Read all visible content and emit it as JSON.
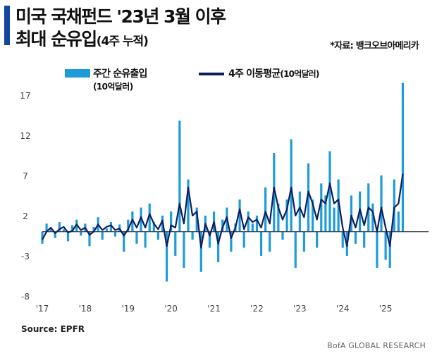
{
  "header": {
    "title_line1": "미국 국채펀드 '23년 3월 이후",
    "title_line2": "최대 순유입",
    "title_line2_sub": "(4주 누적)",
    "source_note": "*자료: 뱅크오브아메리카"
  },
  "legend": {
    "bar_label": "주간 순유출입",
    "bar_unit": "(10억달러)",
    "line_label": "4주 이동평균",
    "line_unit": "(10억달러)"
  },
  "footer": {
    "source": "Source: EPFR",
    "credit": "BofA GLOBAL RESEARCH"
  },
  "colors": {
    "bar": "#1e9bd8",
    "line": "#0d1f5c",
    "accent": "#1446a0"
  },
  "chart_data": {
    "type": "bar",
    "title": "미국 국채펀드 '23년 3월 이후 최대 순유입(4주 누적)",
    "xlabel": "",
    "ylabel": "10억달러",
    "ylim": [
      -8,
      19
    ],
    "yticks": [
      "17",
      "12",
      "7",
      "2",
      "-3",
      "-8"
    ],
    "ytick_values": [
      17,
      12,
      7,
      2,
      -3,
      -8
    ],
    "xticks": [
      "'17",
      "'18",
      "'19",
      "'20",
      "'21",
      "'22",
      "'23",
      "'24",
      "'25"
    ],
    "x_start_year": 2017,
    "x_end_year": 2026,
    "series": [
      {
        "name": "주간 순유출입",
        "type": "bar",
        "points": [
          [
            2017.0,
            -1.5
          ],
          [
            2017.1,
            1.0
          ],
          [
            2017.2,
            0.5
          ],
          [
            2017.3,
            -0.8
          ],
          [
            2017.4,
            1.2
          ],
          [
            2017.5,
            0.3
          ],
          [
            2017.6,
            -1.2
          ],
          [
            2017.7,
            0.8
          ],
          [
            2017.8,
            1.5
          ],
          [
            2017.9,
            -0.5
          ],
          [
            2018.0,
            1.0
          ],
          [
            2018.1,
            -1.8
          ],
          [
            2018.2,
            0.6
          ],
          [
            2018.3,
            1.8
          ],
          [
            2018.4,
            -1.0
          ],
          [
            2018.5,
            0.4
          ],
          [
            2018.6,
            1.2
          ],
          [
            2018.7,
            -0.6
          ],
          [
            2018.8,
            0.9
          ],
          [
            2018.9,
            -2.5
          ],
          [
            2019.0,
            1.5
          ],
          [
            2019.1,
            2.5
          ],
          [
            2019.2,
            -1.5
          ],
          [
            2019.3,
            3.0
          ],
          [
            2019.4,
            -2.0
          ],
          [
            2019.5,
            3.5
          ],
          [
            2019.6,
            1.2
          ],
          [
            2019.7,
            -1.0
          ],
          [
            2019.8,
            2.0
          ],
          [
            2019.9,
            -6.2
          ],
          [
            2020.0,
            2.5
          ],
          [
            2020.1,
            -3.0
          ],
          [
            2020.2,
            13.8
          ],
          [
            2020.3,
            -4.5
          ],
          [
            2020.4,
            6.5
          ],
          [
            2020.5,
            -1.0
          ],
          [
            2020.6,
            3.0
          ],
          [
            2020.7,
            -5.0
          ],
          [
            2020.8,
            2.0
          ],
          [
            2020.9,
            -2.0
          ],
          [
            2021.0,
            2.5
          ],
          [
            2021.1,
            -3.8
          ],
          [
            2021.2,
            1.5
          ],
          [
            2021.3,
            3.0
          ],
          [
            2021.4,
            -2.5
          ],
          [
            2021.5,
            1.0
          ],
          [
            2021.6,
            4.0
          ],
          [
            2021.7,
            -2.0
          ],
          [
            2021.8,
            2.5
          ],
          [
            2021.9,
            1.0
          ],
          [
            2022.0,
            2.0
          ],
          [
            2022.1,
            -3.0
          ],
          [
            2022.2,
            5.5
          ],
          [
            2022.3,
            -2.5
          ],
          [
            2022.4,
            9.8
          ],
          [
            2022.5,
            3.5
          ],
          [
            2022.6,
            -1.0
          ],
          [
            2022.7,
            4.0
          ],
          [
            2022.8,
            11.5
          ],
          [
            2022.9,
            -4.5
          ],
          [
            2023.0,
            5.0
          ],
          [
            2023.1,
            -2.5
          ],
          [
            2023.2,
            8.5
          ],
          [
            2023.3,
            4.0
          ],
          [
            2023.4,
            -2.0
          ],
          [
            2023.5,
            6.0
          ],
          [
            2023.6,
            4.5
          ],
          [
            2023.7,
            10.0
          ],
          [
            2023.8,
            3.0
          ],
          [
            2023.9,
            6.5
          ],
          [
            2024.0,
            -2.0
          ],
          [
            2024.1,
            -3.0
          ],
          [
            2024.2,
            4.5
          ],
          [
            2024.3,
            -1.5
          ],
          [
            2024.4,
            5.0
          ],
          [
            2024.5,
            -2.0
          ],
          [
            2024.6,
            6.0
          ],
          [
            2024.7,
            3.5
          ],
          [
            2024.8,
            -4.5
          ],
          [
            2024.9,
            7.0
          ],
          [
            2025.0,
            -3.5
          ],
          [
            2025.1,
            -4.5
          ],
          [
            2025.2,
            6.5
          ],
          [
            2025.3,
            2.5
          ],
          [
            2025.4,
            18.5
          ]
        ]
      },
      {
        "name": "4주 이동평균",
        "type": "line",
        "points": [
          [
            2017.0,
            -1.0
          ],
          [
            2017.1,
            0.0
          ],
          [
            2017.2,
            0.5
          ],
          [
            2017.3,
            -0.2
          ],
          [
            2017.4,
            0.3
          ],
          [
            2017.5,
            0.6
          ],
          [
            2017.6,
            -0.1
          ],
          [
            2017.7,
            0.1
          ],
          [
            2017.8,
            0.9
          ],
          [
            2017.9,
            0.2
          ],
          [
            2018.0,
            0.5
          ],
          [
            2018.1,
            -0.4
          ],
          [
            2018.2,
            0.0
          ],
          [
            2018.3,
            0.9
          ],
          [
            2018.4,
            0.2
          ],
          [
            2018.5,
            0.6
          ],
          [
            2018.6,
            0.8
          ],
          [
            2018.7,
            0.2
          ],
          [
            2018.8,
            0.4
          ],
          [
            2018.9,
            -0.5
          ],
          [
            2019.0,
            0.3
          ],
          [
            2019.1,
            1.5
          ],
          [
            2019.2,
            0.5
          ],
          [
            2019.3,
            1.8
          ],
          [
            2019.4,
            0.5
          ],
          [
            2019.5,
            2.2
          ],
          [
            2019.6,
            1.0
          ],
          [
            2019.7,
            0.3
          ],
          [
            2019.8,
            1.4
          ],
          [
            2019.9,
            -1.8
          ],
          [
            2020.0,
            0.8
          ],
          [
            2020.1,
            0.5
          ],
          [
            2020.2,
            3.5
          ],
          [
            2020.3,
            1.0
          ],
          [
            2020.4,
            5.5
          ],
          [
            2020.5,
            2.0
          ],
          [
            2020.6,
            2.5
          ],
          [
            2020.7,
            -2.0
          ],
          [
            2020.8,
            1.0
          ],
          [
            2020.9,
            -0.5
          ],
          [
            2021.0,
            1.2
          ],
          [
            2021.1,
            -1.5
          ],
          [
            2021.2,
            0.5
          ],
          [
            2021.3,
            1.8
          ],
          [
            2021.4,
            -0.8
          ],
          [
            2021.5,
            0.5
          ],
          [
            2021.6,
            2.8
          ],
          [
            2021.7,
            0.3
          ],
          [
            2021.8,
            1.8
          ],
          [
            2021.9,
            1.2
          ],
          [
            2022.0,
            1.5
          ],
          [
            2022.1,
            0.5
          ],
          [
            2022.2,
            2.5
          ],
          [
            2022.3,
            1.0
          ],
          [
            2022.4,
            5.5
          ],
          [
            2022.5,
            3.0
          ],
          [
            2022.6,
            1.5
          ],
          [
            2022.7,
            2.8
          ],
          [
            2022.8,
            5.5
          ],
          [
            2022.9,
            2.0
          ],
          [
            2023.0,
            3.0
          ],
          [
            2023.1,
            1.8
          ],
          [
            2023.2,
            5.0
          ],
          [
            2023.3,
            3.5
          ],
          [
            2023.4,
            1.5
          ],
          [
            2023.5,
            4.0
          ],
          [
            2023.6,
            3.5
          ],
          [
            2023.7,
            6.0
          ],
          [
            2023.8,
            3.5
          ],
          [
            2023.9,
            4.0
          ],
          [
            2024.0,
            0.5
          ],
          [
            2024.1,
            -1.8
          ],
          [
            2024.2,
            2.0
          ],
          [
            2024.3,
            0.5
          ],
          [
            2024.4,
            2.8
          ],
          [
            2024.5,
            0.8
          ],
          [
            2024.6,
            3.0
          ],
          [
            2024.7,
            2.5
          ],
          [
            2024.8,
            0.0
          ],
          [
            2024.9,
            3.0
          ],
          [
            2025.0,
            0.5
          ],
          [
            2025.1,
            -1.8
          ],
          [
            2025.2,
            3.0
          ],
          [
            2025.3,
            3.5
          ],
          [
            2025.4,
            7.2
          ]
        ]
      }
    ]
  }
}
